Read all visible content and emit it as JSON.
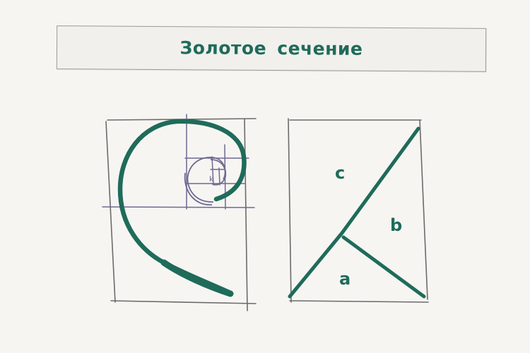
{
  "title": "Золотое сечение",
  "colors": {
    "accent": "#1f6b5a",
    "line": "#6e6a92",
    "sketch": "#6b6b6b",
    "paper": "#f6f5f2"
  },
  "spiral_figure": {
    "kind": "golden-spiral-in-rectangle",
    "inner_mark": "k"
  },
  "segments_figure": {
    "kind": "divided-triangle-in-rectangle",
    "labels": {
      "c": "c",
      "b": "b",
      "a": "a"
    }
  }
}
